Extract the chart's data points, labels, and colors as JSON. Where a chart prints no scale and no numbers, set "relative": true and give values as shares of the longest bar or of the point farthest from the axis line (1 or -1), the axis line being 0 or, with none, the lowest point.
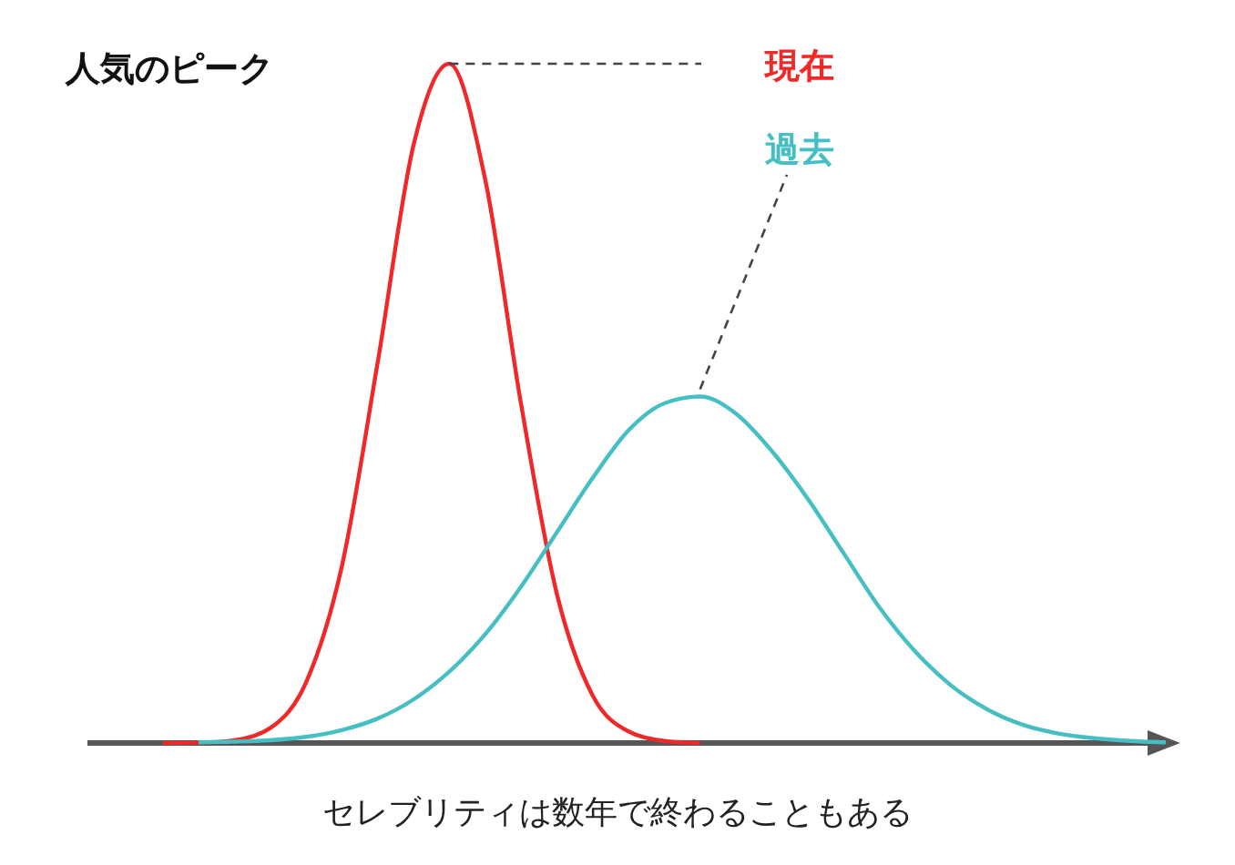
{
  "chart_data": {
    "type": "line",
    "title": "人気のピーク",
    "xlabel": "セレブリティは数年で終わることもある",
    "relative": true,
    "categories": [
      null,
      null,
      null,
      null,
      null,
      null,
      null,
      null,
      null,
      null,
      null,
      null,
      null,
      null,
      null,
      null,
      null,
      null,
      null,
      null,
      null,
      null,
      null,
      null,
      null,
      null,
      null,
      null,
      null,
      null,
      null
    ],
    "series": [
      {
        "name": "現在",
        "color": "#f02828",
        "values": [
          null,
          null,
          0,
          0.0005,
          0.004,
          0.022,
          0.089,
          0.26,
          0.56,
          0.88,
          1,
          0.83,
          0.5,
          0.22,
          0.07,
          0.017,
          0.003,
          0,
          null,
          null,
          null,
          null,
          null,
          null,
          null,
          null,
          null,
          null,
          null,
          null,
          null
        ]
      },
      {
        "name": "過去",
        "color": "#45bfc4",
        "values": [
          null,
          null,
          null,
          0.001,
          0.002,
          0.004,
          0.009,
          0.019,
          0.036,
          0.064,
          0.105,
          0.16,
          0.23,
          0.31,
          0.39,
          0.46,
          0.5,
          0.51,
          0.485,
          0.43,
          0.36,
          0.28,
          0.2,
          0.135,
          0.085,
          0.05,
          0.027,
          0.014,
          0.007,
          0.003,
          0.001
        ]
      }
    ]
  }
}
